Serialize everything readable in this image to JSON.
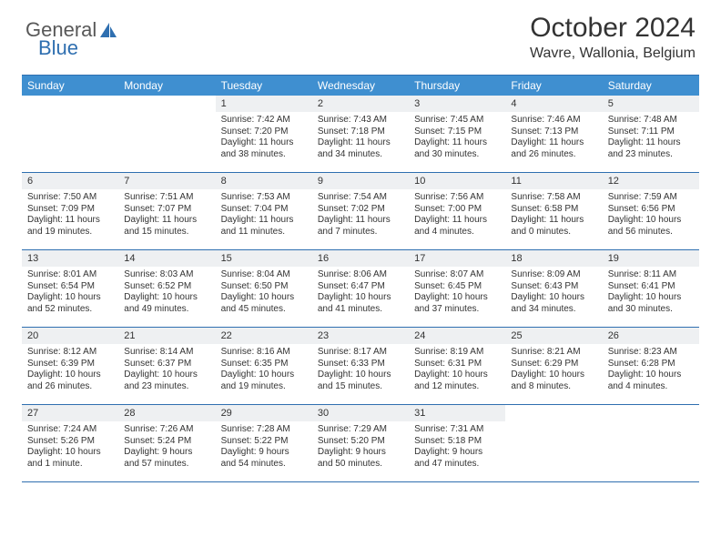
{
  "brand": {
    "word1": "General",
    "word2": "Blue",
    "logo_color": "#2f6fb0",
    "word1_color": "#585858"
  },
  "title": "October 2024",
  "location": "Wavre, Wallonia, Belgium",
  "colors": {
    "header_bg": "#3f8fd0",
    "border": "#2f6fb0",
    "daynum_bg": "#eef0f2",
    "text": "#333333",
    "page_bg": "#ffffff"
  },
  "day_headers": [
    "Sunday",
    "Monday",
    "Tuesday",
    "Wednesday",
    "Thursday",
    "Friday",
    "Saturday"
  ],
  "weeks": [
    [
      {
        "n": "",
        "lines": []
      },
      {
        "n": "",
        "lines": []
      },
      {
        "n": "1",
        "lines": [
          "Sunrise: 7:42 AM",
          "Sunset: 7:20 PM",
          "Daylight: 11 hours",
          "and 38 minutes."
        ]
      },
      {
        "n": "2",
        "lines": [
          "Sunrise: 7:43 AM",
          "Sunset: 7:18 PM",
          "Daylight: 11 hours",
          "and 34 minutes."
        ]
      },
      {
        "n": "3",
        "lines": [
          "Sunrise: 7:45 AM",
          "Sunset: 7:15 PM",
          "Daylight: 11 hours",
          "and 30 minutes."
        ]
      },
      {
        "n": "4",
        "lines": [
          "Sunrise: 7:46 AM",
          "Sunset: 7:13 PM",
          "Daylight: 11 hours",
          "and 26 minutes."
        ]
      },
      {
        "n": "5",
        "lines": [
          "Sunrise: 7:48 AM",
          "Sunset: 7:11 PM",
          "Daylight: 11 hours",
          "and 23 minutes."
        ]
      }
    ],
    [
      {
        "n": "6",
        "lines": [
          "Sunrise: 7:50 AM",
          "Sunset: 7:09 PM",
          "Daylight: 11 hours",
          "and 19 minutes."
        ]
      },
      {
        "n": "7",
        "lines": [
          "Sunrise: 7:51 AM",
          "Sunset: 7:07 PM",
          "Daylight: 11 hours",
          "and 15 minutes."
        ]
      },
      {
        "n": "8",
        "lines": [
          "Sunrise: 7:53 AM",
          "Sunset: 7:04 PM",
          "Daylight: 11 hours",
          "and 11 minutes."
        ]
      },
      {
        "n": "9",
        "lines": [
          "Sunrise: 7:54 AM",
          "Sunset: 7:02 PM",
          "Daylight: 11 hours",
          "and 7 minutes."
        ]
      },
      {
        "n": "10",
        "lines": [
          "Sunrise: 7:56 AM",
          "Sunset: 7:00 PM",
          "Daylight: 11 hours",
          "and 4 minutes."
        ]
      },
      {
        "n": "11",
        "lines": [
          "Sunrise: 7:58 AM",
          "Sunset: 6:58 PM",
          "Daylight: 11 hours",
          "and 0 minutes."
        ]
      },
      {
        "n": "12",
        "lines": [
          "Sunrise: 7:59 AM",
          "Sunset: 6:56 PM",
          "Daylight: 10 hours",
          "and 56 minutes."
        ]
      }
    ],
    [
      {
        "n": "13",
        "lines": [
          "Sunrise: 8:01 AM",
          "Sunset: 6:54 PM",
          "Daylight: 10 hours",
          "and 52 minutes."
        ]
      },
      {
        "n": "14",
        "lines": [
          "Sunrise: 8:03 AM",
          "Sunset: 6:52 PM",
          "Daylight: 10 hours",
          "and 49 minutes."
        ]
      },
      {
        "n": "15",
        "lines": [
          "Sunrise: 8:04 AM",
          "Sunset: 6:50 PM",
          "Daylight: 10 hours",
          "and 45 minutes."
        ]
      },
      {
        "n": "16",
        "lines": [
          "Sunrise: 8:06 AM",
          "Sunset: 6:47 PM",
          "Daylight: 10 hours",
          "and 41 minutes."
        ]
      },
      {
        "n": "17",
        "lines": [
          "Sunrise: 8:07 AM",
          "Sunset: 6:45 PM",
          "Daylight: 10 hours",
          "and 37 minutes."
        ]
      },
      {
        "n": "18",
        "lines": [
          "Sunrise: 8:09 AM",
          "Sunset: 6:43 PM",
          "Daylight: 10 hours",
          "and 34 minutes."
        ]
      },
      {
        "n": "19",
        "lines": [
          "Sunrise: 8:11 AM",
          "Sunset: 6:41 PM",
          "Daylight: 10 hours",
          "and 30 minutes."
        ]
      }
    ],
    [
      {
        "n": "20",
        "lines": [
          "Sunrise: 8:12 AM",
          "Sunset: 6:39 PM",
          "Daylight: 10 hours",
          "and 26 minutes."
        ]
      },
      {
        "n": "21",
        "lines": [
          "Sunrise: 8:14 AM",
          "Sunset: 6:37 PM",
          "Daylight: 10 hours",
          "and 23 minutes."
        ]
      },
      {
        "n": "22",
        "lines": [
          "Sunrise: 8:16 AM",
          "Sunset: 6:35 PM",
          "Daylight: 10 hours",
          "and 19 minutes."
        ]
      },
      {
        "n": "23",
        "lines": [
          "Sunrise: 8:17 AM",
          "Sunset: 6:33 PM",
          "Daylight: 10 hours",
          "and 15 minutes."
        ]
      },
      {
        "n": "24",
        "lines": [
          "Sunrise: 8:19 AM",
          "Sunset: 6:31 PM",
          "Daylight: 10 hours",
          "and 12 minutes."
        ]
      },
      {
        "n": "25",
        "lines": [
          "Sunrise: 8:21 AM",
          "Sunset: 6:29 PM",
          "Daylight: 10 hours",
          "and 8 minutes."
        ]
      },
      {
        "n": "26",
        "lines": [
          "Sunrise: 8:23 AM",
          "Sunset: 6:28 PM",
          "Daylight: 10 hours",
          "and 4 minutes."
        ]
      }
    ],
    [
      {
        "n": "27",
        "lines": [
          "Sunrise: 7:24 AM",
          "Sunset: 5:26 PM",
          "Daylight: 10 hours",
          "and 1 minute."
        ]
      },
      {
        "n": "28",
        "lines": [
          "Sunrise: 7:26 AM",
          "Sunset: 5:24 PM",
          "Daylight: 9 hours",
          "and 57 minutes."
        ]
      },
      {
        "n": "29",
        "lines": [
          "Sunrise: 7:28 AM",
          "Sunset: 5:22 PM",
          "Daylight: 9 hours",
          "and 54 minutes."
        ]
      },
      {
        "n": "30",
        "lines": [
          "Sunrise: 7:29 AM",
          "Sunset: 5:20 PM",
          "Daylight: 9 hours",
          "and 50 minutes."
        ]
      },
      {
        "n": "31",
        "lines": [
          "Sunrise: 7:31 AM",
          "Sunset: 5:18 PM",
          "Daylight: 9 hours",
          "and 47 minutes."
        ]
      },
      {
        "n": "",
        "lines": []
      },
      {
        "n": "",
        "lines": []
      }
    ]
  ]
}
